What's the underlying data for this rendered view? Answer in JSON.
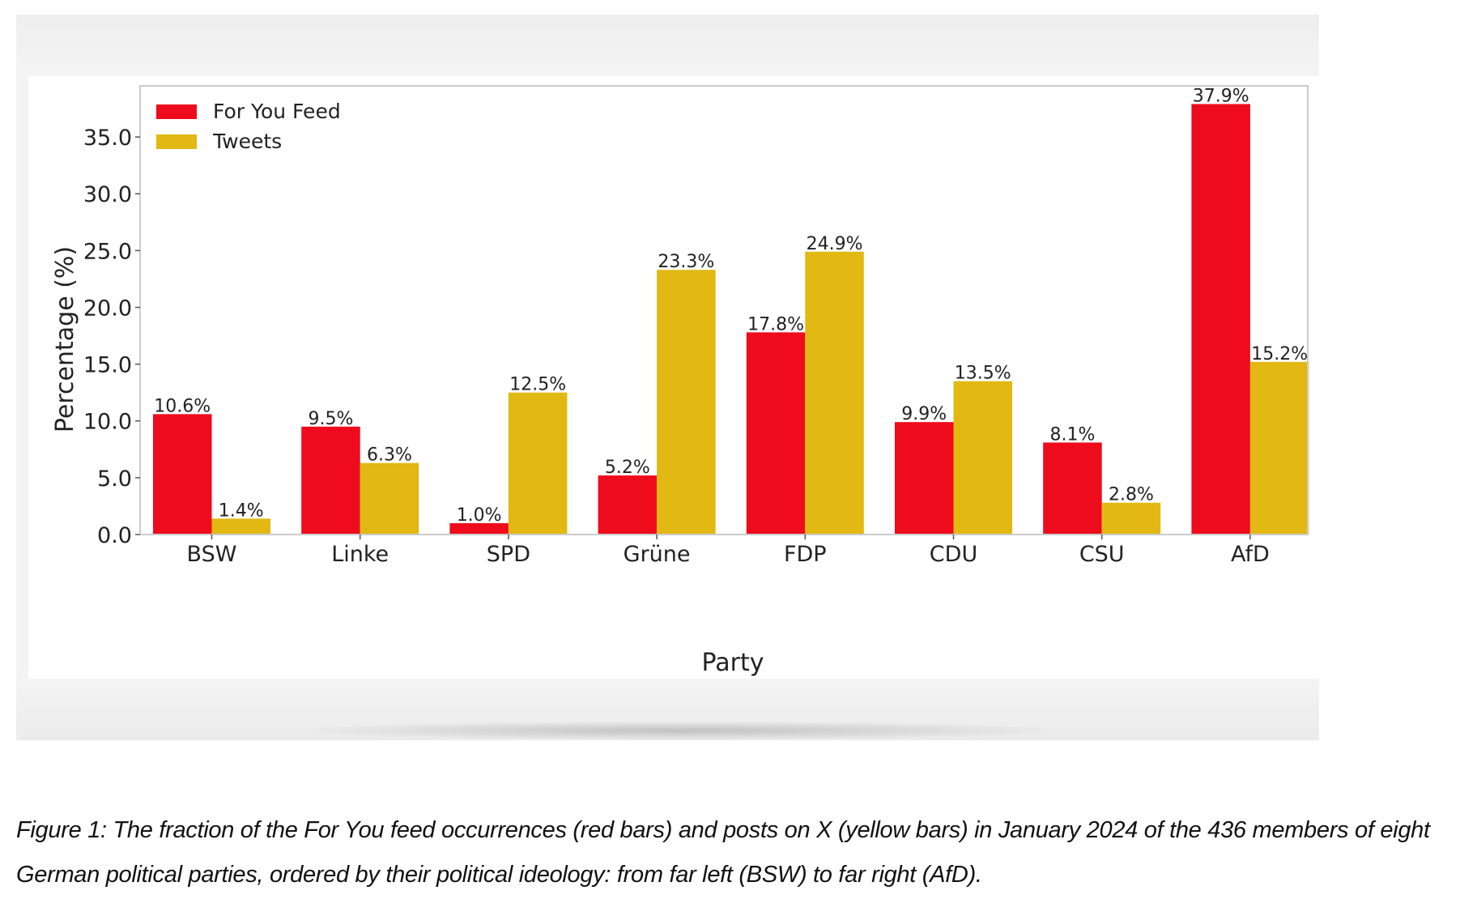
{
  "chart_data": {
    "type": "bar",
    "title": "",
    "xlabel": "Party",
    "ylabel": "Percentage (%)",
    "categories": [
      "BSW",
      "Linke",
      "SPD",
      "Grüne",
      "FDP",
      "CDU",
      "CSU",
      "AfD"
    ],
    "series": [
      {
        "name": "For You Feed",
        "color": "#ee0b1c",
        "values": [
          10.6,
          9.5,
          1.0,
          5.2,
          17.8,
          9.9,
          8.1,
          37.9
        ],
        "labels": [
          "10.6%",
          "9.5%",
          "1.0%",
          "5.2%",
          "17.8%",
          "9.9%",
          "8.1%",
          "37.9%"
        ]
      },
      {
        "name": "Tweets",
        "color": "#e1b912",
        "values": [
          1.4,
          6.3,
          12.5,
          23.3,
          24.9,
          13.5,
          2.8,
          15.2
        ],
        "labels": [
          "1.4%",
          "6.3%",
          "12.5%",
          "23.3%",
          "24.9%",
          "13.5%",
          "2.8%",
          "15.2%"
        ]
      }
    ],
    "ylim": [
      0,
      39.5
    ],
    "yticks": [
      0,
      5,
      10,
      15,
      20,
      25,
      30,
      35
    ],
    "ytick_labels": [
      "0.0",
      "5.0",
      "10.0",
      "15.0",
      "20.0",
      "25.0",
      "30.0",
      "35.0"
    ],
    "grid": false,
    "legend_position": "top-left"
  },
  "caption": "Figure 1: The fraction of the For You feed occurrences (red bars) and posts on X (yellow bars) in January 2024 of the 436 members of eight German political parties, ordered by their political ideology: from far left (BSW) to far right (AfD)."
}
